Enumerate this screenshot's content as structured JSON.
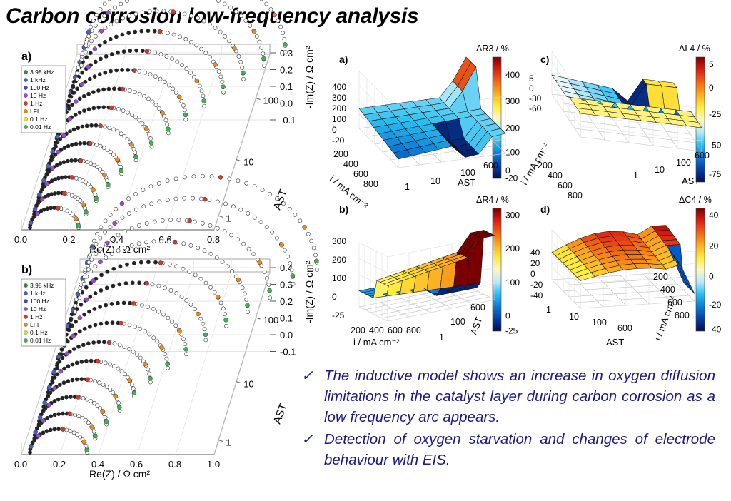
{
  "title": "Carbon corrosion low-frequency analysis",
  "nyquist": [
    {
      "panel_label": "a)",
      "xlabel": "Re(Z) / Ω cm²",
      "ylabel": "-Im(Z) / Ω cm²",
      "zlabel": "AST",
      "x_ticks": [
        "0.0",
        "0.2",
        "0.4",
        "0.6",
        "0.8"
      ],
      "y_ticks": [
        "0.3",
        "0.2",
        "0.1",
        "0.0",
        "-0.1"
      ],
      "z_ticks": [
        "100",
        "10",
        "1"
      ],
      "legend": [
        "3.98 kHz",
        "1 kHz",
        "100 Hz",
        "10 Hz",
        "1 Hz",
        "LFI",
        "0.1 Hz",
        "0.01 Hz"
      ]
    },
    {
      "panel_label": "b)",
      "xlabel": "Re(Z) / Ω cm²",
      "ylabel": "-Im(Z) / Ω cm²",
      "zlabel": "AST",
      "x_ticks": [
        "0.0",
        "0.2",
        "0.4",
        "0.6",
        "0.8",
        "1.0"
      ],
      "y_ticks": [
        "0.4",
        "0.3",
        "0.2",
        "0.1",
        "0.0",
        "-0.1"
      ],
      "z_ticks": [
        "100",
        "10",
        "1"
      ],
      "legend": [
        "3.98 kHz",
        "1 kHz",
        "100 Hz",
        "10 Hz",
        "1 Hz",
        "LFI",
        "0.1 Hz",
        "0.01 Hz"
      ]
    }
  ],
  "legend_colors": [
    "#3a8a3a",
    "#4a5fc8",
    "#4a4aa8",
    "#9a4ad8",
    "#d43a2a",
    "#f08a1a",
    "#e8e23a",
    "#3ab84a"
  ],
  "surfaces": [
    {
      "panel_label": "a)",
      "cbar_title": "ΔR3 / %",
      "cbar_ticks": [
        "400",
        "300",
        "200",
        "100",
        "0",
        "-20"
      ],
      "z_ticks": [
        "400",
        "300",
        "200",
        "100",
        "0",
        "-20"
      ],
      "i_label": "i / mA cm⁻²",
      "i_ticks": [
        "200",
        "400",
        "600",
        "800"
      ],
      "ast_ticks": [
        "1",
        "10",
        "100",
        "600"
      ],
      "ast_label": "AST"
    },
    {
      "panel_label": "b)",
      "cbar_title": "ΔR4 / %",
      "cbar_ticks": [
        "300",
        "200",
        "100",
        "0",
        "-25"
      ],
      "z_ticks": [
        "300",
        "200",
        "100",
        "0",
        "-25"
      ],
      "i_label": "i / mA cm⁻²",
      "i_ticks": [
        "200",
        "400",
        "600",
        "800"
      ],
      "ast_ticks": [
        "1",
        "100",
        "600"
      ],
      "ast_label": "AST"
    },
    {
      "panel_label": "c)",
      "cbar_title": "ΔL4 / %",
      "cbar_ticks": [
        "5",
        "0",
        "-25",
        "-50",
        "-75"
      ],
      "z_ticks": [
        "5",
        "0",
        "-30",
        "-60"
      ],
      "i_label": "i / mA cm⁻²",
      "i_ticks": [
        "200",
        "400",
        "600",
        "800"
      ],
      "ast_ticks": [
        "1",
        "10",
        "100",
        "600"
      ],
      "ast_label": "AST"
    },
    {
      "panel_label": "d)",
      "cbar_title": "ΔC4 / %",
      "cbar_ticks": [
        "40",
        "20",
        "0",
        "-20",
        "-40"
      ],
      "z_ticks": [
        "40",
        "20",
        "0",
        "-20",
        "-40"
      ],
      "i_label": "i / mA cm⁻²",
      "i_ticks": [
        "200",
        "400",
        "600",
        "800"
      ],
      "ast_ticks": [
        "1",
        "10",
        "100",
        "600"
      ],
      "ast_label": "AST"
    }
  ],
  "chart_data": [
    {
      "type": "scatter",
      "title": "a)",
      "xlabel": "Re(Z) / Ω cm²",
      "ylabel": "-Im(Z) / Ω cm²",
      "zlabel": "AST",
      "xlim": [
        0.0,
        0.8
      ],
      "ylim": [
        -0.1,
        0.3
      ],
      "zscale": "log",
      "zlim": [
        1,
        600
      ],
      "note_series": "Nyquist arcs, one per AST count; arc size grows with AST",
      "series": [
        {
          "name": "3.98 kHz"
        },
        {
          "name": "1 kHz"
        },
        {
          "name": "100 Hz"
        },
        {
          "name": "10 Hz"
        },
        {
          "name": "1 Hz"
        },
        {
          "name": "LFI"
        },
        {
          "name": "0.1 Hz"
        },
        {
          "name": "0.01 Hz"
        }
      ]
    },
    {
      "type": "scatter",
      "title": "b)",
      "xlabel": "Re(Z) / Ω cm²",
      "ylabel": "-Im(Z) / Ω cm²",
      "zlabel": "AST",
      "xlim": [
        0.0,
        1.0
      ],
      "ylim": [
        -0.1,
        0.4
      ],
      "zscale": "log",
      "zlim": [
        1,
        600
      ],
      "series": [
        {
          "name": "3.98 kHz"
        },
        {
          "name": "1 kHz"
        },
        {
          "name": "100 Hz"
        },
        {
          "name": "10 Hz"
        },
        {
          "name": "1 Hz"
        },
        {
          "name": "LFI"
        },
        {
          "name": "0.1 Hz"
        },
        {
          "name": "0.01 Hz"
        }
      ]
    },
    {
      "type": "heatmap",
      "title": "a)",
      "colorbar": "ΔR3 / %",
      "zlim": [
        -20,
        450
      ],
      "xlabel": "i / mA cm⁻²",
      "ylabel": "AST"
    },
    {
      "type": "heatmap",
      "title": "b)",
      "colorbar": "ΔR4 / %",
      "zlim": [
        -25,
        330
      ],
      "xlabel": "i / mA cm⁻²",
      "ylabel": "AST"
    },
    {
      "type": "heatmap",
      "title": "c)",
      "colorbar": "ΔL4 / %",
      "zlim": [
        -85,
        7
      ],
      "xlabel": "i / mA cm⁻²",
      "ylabel": "AST"
    },
    {
      "type": "heatmap",
      "title": "d)",
      "colorbar": "ΔC4 / %",
      "zlim": [
        -40,
        45
      ],
      "xlabel": "i / mA cm⁻²",
      "ylabel": "AST"
    }
  ],
  "bullets": [
    "The inductive model shows an increase in oxygen diffusion limitations in the catalyst layer during carbon corrosion as a low frequency arc appears.",
    "Detection of oxygen starvation and changes of electrode behaviour with EIS."
  ],
  "check_glyph": "✓"
}
